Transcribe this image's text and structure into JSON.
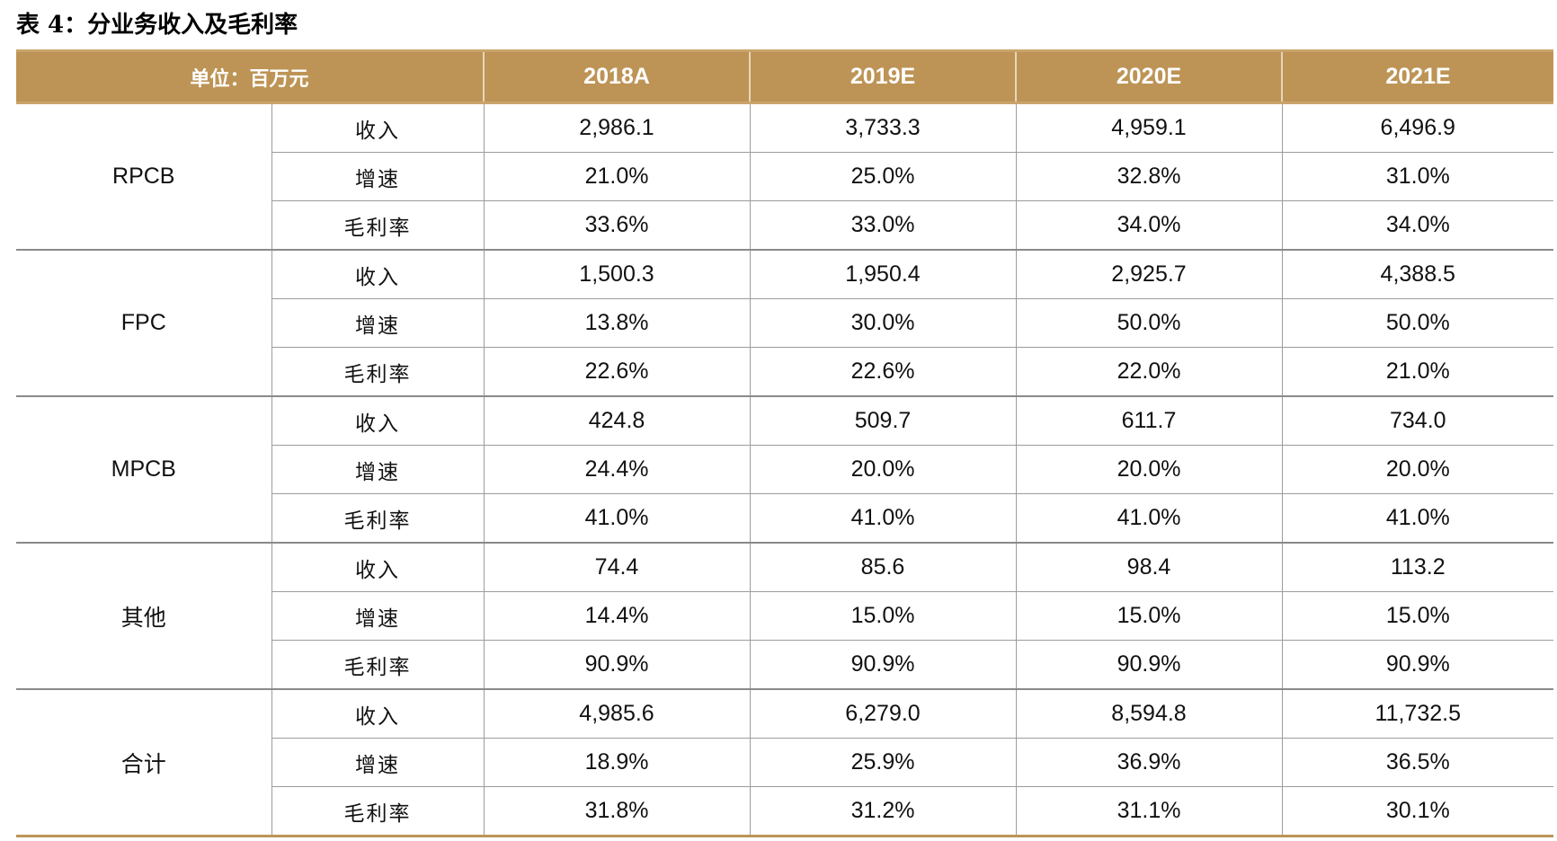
{
  "title": "表 4：分业务收入及毛利率",
  "header": {
    "unit": "单位：百万元",
    "years": [
      "2018A",
      "2019E",
      "2020E",
      "2021E"
    ]
  },
  "metrics": [
    "收入",
    "增速",
    "毛利率"
  ],
  "segments": [
    {
      "name": "RPCB",
      "rows": [
        [
          "2,986.1",
          "3,733.3",
          "4,959.1",
          "6,496.9"
        ],
        [
          "21.0%",
          "25.0%",
          "32.8%",
          "31.0%"
        ],
        [
          "33.6%",
          "33.0%",
          "34.0%",
          "34.0%"
        ]
      ]
    },
    {
      "name": "FPC",
      "rows": [
        [
          "1,500.3",
          "1,950.4",
          "2,925.7",
          "4,388.5"
        ],
        [
          "13.8%",
          "30.0%",
          "50.0%",
          "50.0%"
        ],
        [
          "22.6%",
          "22.6%",
          "22.0%",
          "21.0%"
        ]
      ]
    },
    {
      "name": "MPCB",
      "rows": [
        [
          "424.8",
          "509.7",
          "611.7",
          "734.0"
        ],
        [
          "24.4%",
          "20.0%",
          "20.0%",
          "20.0%"
        ],
        [
          "41.0%",
          "41.0%",
          "41.0%",
          "41.0%"
        ]
      ]
    },
    {
      "name": "其他",
      "rows": [
        [
          "74.4",
          "85.6",
          "98.4",
          "113.2"
        ],
        [
          "14.4%",
          "15.0%",
          "15.0%",
          "15.0%"
        ],
        [
          "90.9%",
          "90.9%",
          "90.9%",
          "90.9%"
        ]
      ]
    },
    {
      "name": "合计",
      "rows": [
        [
          "4,985.6",
          "6,279.0",
          "8,594.8",
          "11,732.5"
        ],
        [
          "18.9%",
          "25.9%",
          "36.9%",
          "36.5%"
        ],
        [
          "31.8%",
          "31.2%",
          "31.1%",
          "30.1%"
        ]
      ]
    }
  ],
  "colors": {
    "header_bg": "#bd9456",
    "header_text": "#ffffff",
    "grid": "#9c9c9c"
  }
}
